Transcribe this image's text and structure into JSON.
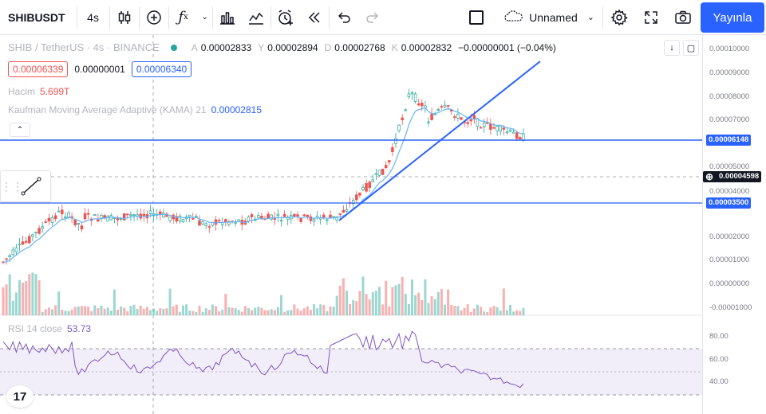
{
  "toolbar": {
    "symbol": "SHIBUSDT",
    "interval": "4s",
    "layout_name": "Unnamed",
    "publish_label": "Yayınla"
  },
  "legend": {
    "title": "SHIB / TetherUS · 4s · BINANCE",
    "o_label": "A",
    "o_value": "0.00002833",
    "h_label": "Y",
    "h_value": "0.00002894",
    "l_label": "D",
    "l_value": "0.00002768",
    "c_label": "K",
    "c_value": "0.00002832",
    "change": "−0.00000001 (−0.04%)"
  },
  "price_boxes": {
    "sell": "0.00006339",
    "spread": "0.00000001",
    "buy": "0.00006340"
  },
  "volume": {
    "label": "Hacim",
    "value": "5.699T"
  },
  "kama": {
    "label": "Kaufman Moving Average Adaptive (KAMA) 21",
    "value": "0.00002815"
  },
  "rsi": {
    "label": "RSI 14 close",
    "value": "53.73"
  },
  "price_axis": {
    "ticks": [
      "0.00010000",
      "0.00009000",
      "0.00008000",
      "0.00007000",
      "0.00005000",
      "0.00004000",
      "0.00002000",
      "0.00001000",
      "0.00000000",
      "-0.00001000"
    ],
    "badge_line1": "0.00006148",
    "badge_crosshair": "0.00004598",
    "badge_line2": "0.00003500"
  },
  "rsi_axis": {
    "ticks": [
      "80.00",
      "60.00",
      "40.00"
    ]
  },
  "logo_text": "17",
  "colors": {
    "accent": "#2962ff",
    "up": "#26a69a",
    "down": "#ef5350",
    "rsi": "#7e57c2",
    "kama": "#64b5f6"
  }
}
